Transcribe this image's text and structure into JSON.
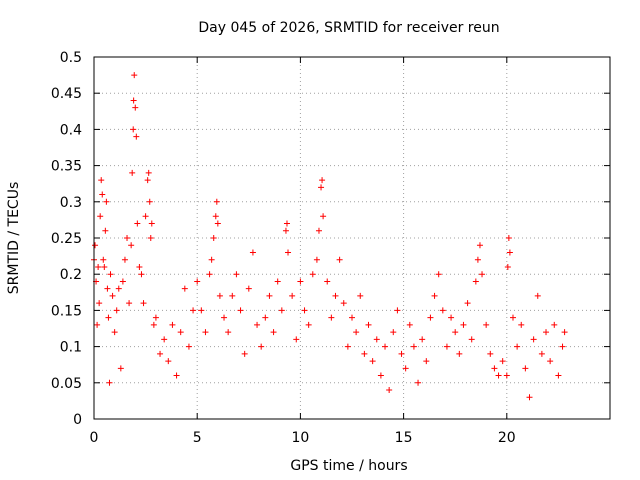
{
  "chart_data": {
    "type": "scatter",
    "title": "Day 045 of 2026, SRMTID for receiver reun",
    "xlabel": "GPS time / hours",
    "ylabel": "SRMTID / TECUs",
    "xlim": [
      0,
      25
    ],
    "ylim": [
      0,
      0.5
    ],
    "xticks": [
      0,
      5,
      10,
      15,
      20
    ],
    "xtick_labels": [
      "0",
      "5",
      "10",
      "15",
      "20"
    ],
    "yticks": [
      0,
      0.05,
      0.1,
      0.15,
      0.2,
      0.25,
      0.3,
      0.35,
      0.4,
      0.45,
      0.5
    ],
    "ytick_labels": [
      "0",
      "0.05",
      "0.1",
      "0.15",
      "0.2",
      "0.25",
      "0.3",
      "0.35",
      "0.4",
      "0.45",
      "0.5"
    ],
    "grid": true,
    "marker": "+",
    "color": "#ff0000",
    "series": [
      {
        "name": "SRMTID",
        "points": [
          [
            0.0,
            0.22
          ],
          [
            0.05,
            0.24
          ],
          [
            0.1,
            0.19
          ],
          [
            0.15,
            0.13
          ],
          [
            0.2,
            0.21
          ],
          [
            0.25,
            0.16
          ],
          [
            0.3,
            0.28
          ],
          [
            0.35,
            0.33
          ],
          [
            0.4,
            0.31
          ],
          [
            0.45,
            0.22
          ],
          [
            0.5,
            0.21
          ],
          [
            0.55,
            0.26
          ],
          [
            0.6,
            0.3
          ],
          [
            0.65,
            0.18
          ],
          [
            0.7,
            0.14
          ],
          [
            0.75,
            0.05
          ],
          [
            0.8,
            0.2
          ],
          [
            0.9,
            0.17
          ],
          [
            1.0,
            0.12
          ],
          [
            1.1,
            0.15
          ],
          [
            1.2,
            0.18
          ],
          [
            1.3,
            0.07
          ],
          [
            1.4,
            0.19
          ],
          [
            1.5,
            0.22
          ],
          [
            1.6,
            0.25
          ],
          [
            1.7,
            0.16
          ],
          [
            1.8,
            0.24
          ],
          [
            1.85,
            0.34
          ],
          [
            1.9,
            0.4
          ],
          [
            1.92,
            0.44
          ],
          [
            1.95,
            0.475
          ],
          [
            2.0,
            0.43
          ],
          [
            2.05,
            0.39
          ],
          [
            2.1,
            0.27
          ],
          [
            2.2,
            0.21
          ],
          [
            2.3,
            0.2
          ],
          [
            2.4,
            0.16
          ],
          [
            2.5,
            0.28
          ],
          [
            2.6,
            0.33
          ],
          [
            2.65,
            0.34
          ],
          [
            2.7,
            0.3
          ],
          [
            2.75,
            0.25
          ],
          [
            2.8,
            0.27
          ],
          [
            2.9,
            0.13
          ],
          [
            3.0,
            0.14
          ],
          [
            3.2,
            0.09
          ],
          [
            3.4,
            0.11
          ],
          [
            3.6,
            0.08
          ],
          [
            3.8,
            0.13
          ],
          [
            4.0,
            0.06
          ],
          [
            4.2,
            0.12
          ],
          [
            4.4,
            0.18
          ],
          [
            4.6,
            0.1
          ],
          [
            4.8,
            0.15
          ],
          [
            5.0,
            0.19
          ],
          [
            5.2,
            0.15
          ],
          [
            5.4,
            0.12
          ],
          [
            5.6,
            0.2
          ],
          [
            5.7,
            0.22
          ],
          [
            5.8,
            0.25
          ],
          [
            5.9,
            0.28
          ],
          [
            5.95,
            0.3
          ],
          [
            6.0,
            0.27
          ],
          [
            6.1,
            0.17
          ],
          [
            6.3,
            0.14
          ],
          [
            6.5,
            0.12
          ],
          [
            6.7,
            0.17
          ],
          [
            6.9,
            0.2
          ],
          [
            7.1,
            0.15
          ],
          [
            7.3,
            0.09
          ],
          [
            7.5,
            0.18
          ],
          [
            7.7,
            0.23
          ],
          [
            7.9,
            0.13
          ],
          [
            8.1,
            0.1
          ],
          [
            8.3,
            0.14
          ],
          [
            8.5,
            0.17
          ],
          [
            8.7,
            0.12
          ],
          [
            8.9,
            0.19
          ],
          [
            9.1,
            0.15
          ],
          [
            9.3,
            0.26
          ],
          [
            9.35,
            0.27
          ],
          [
            9.4,
            0.23
          ],
          [
            9.6,
            0.17
          ],
          [
            9.8,
            0.11
          ],
          [
            10.0,
            0.19
          ],
          [
            10.2,
            0.15
          ],
          [
            10.4,
            0.13
          ],
          [
            10.6,
            0.2
          ],
          [
            10.8,
            0.22
          ],
          [
            10.9,
            0.26
          ],
          [
            11.0,
            0.32
          ],
          [
            11.05,
            0.33
          ],
          [
            11.1,
            0.28
          ],
          [
            11.3,
            0.19
          ],
          [
            11.5,
            0.14
          ],
          [
            11.7,
            0.17
          ],
          [
            11.9,
            0.22
          ],
          [
            12.1,
            0.16
          ],
          [
            12.3,
            0.1
          ],
          [
            12.5,
            0.14
          ],
          [
            12.7,
            0.12
          ],
          [
            12.9,
            0.17
          ],
          [
            13.1,
            0.09
          ],
          [
            13.3,
            0.13
          ],
          [
            13.5,
            0.08
          ],
          [
            13.7,
            0.11
          ],
          [
            13.9,
            0.06
          ],
          [
            14.1,
            0.1
          ],
          [
            14.3,
            0.04
          ],
          [
            14.5,
            0.12
          ],
          [
            14.7,
            0.15
          ],
          [
            14.9,
            0.09
          ],
          [
            15.1,
            0.07
          ],
          [
            15.3,
            0.13
          ],
          [
            15.5,
            0.1
          ],
          [
            15.7,
            0.05
          ],
          [
            15.9,
            0.11
          ],
          [
            16.1,
            0.08
          ],
          [
            16.3,
            0.14
          ],
          [
            16.5,
            0.17
          ],
          [
            16.7,
            0.2
          ],
          [
            16.9,
            0.15
          ],
          [
            17.1,
            0.1
          ],
          [
            17.3,
            0.14
          ],
          [
            17.5,
            0.12
          ],
          [
            17.7,
            0.09
          ],
          [
            17.9,
            0.13
          ],
          [
            18.1,
            0.16
          ],
          [
            18.3,
            0.11
          ],
          [
            18.5,
            0.19
          ],
          [
            18.6,
            0.22
          ],
          [
            18.7,
            0.24
          ],
          [
            18.8,
            0.2
          ],
          [
            19.0,
            0.13
          ],
          [
            19.2,
            0.09
          ],
          [
            19.4,
            0.07
          ],
          [
            19.6,
            0.06
          ],
          [
            19.8,
            0.08
          ],
          [
            20.0,
            0.06
          ],
          [
            20.05,
            0.21
          ],
          [
            20.1,
            0.25
          ],
          [
            20.15,
            0.23
          ],
          [
            20.3,
            0.14
          ],
          [
            20.5,
            0.1
          ],
          [
            20.7,
            0.13
          ],
          [
            20.9,
            0.07
          ],
          [
            21.1,
            0.03
          ],
          [
            21.3,
            0.11
          ],
          [
            21.5,
            0.17
          ],
          [
            21.7,
            0.09
          ],
          [
            21.9,
            0.12
          ],
          [
            22.1,
            0.08
          ],
          [
            22.3,
            0.13
          ],
          [
            22.5,
            0.06
          ],
          [
            22.7,
            0.1
          ],
          [
            22.8,
            0.12
          ]
        ]
      }
    ]
  }
}
